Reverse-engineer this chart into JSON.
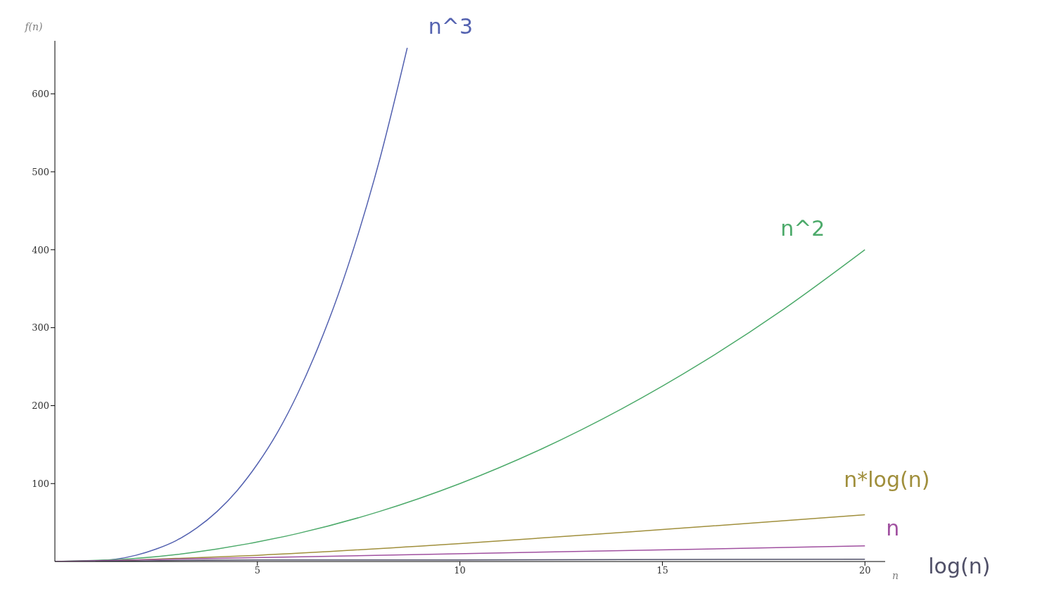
{
  "chart_data": {
    "type": "line",
    "xlabel": "n",
    "ylabel": "f(n)",
    "xlim": [
      0,
      20.5
    ],
    "ylim": [
      0,
      668
    ],
    "xticks": [
      5,
      10,
      15,
      20
    ],
    "yticks": [
      100,
      200,
      300,
      400,
      500,
      600
    ],
    "marker": "none",
    "line_style": "solid",
    "series": [
      {
        "name": "n^3",
        "color": "#5462b0",
        "x": [
          0,
          1,
          1.5,
          2,
          2.5,
          3,
          3.5,
          4,
          4.5,
          5,
          5.5,
          6,
          6.5,
          7,
          7.5,
          8,
          8.7
        ],
        "values": [
          0,
          1,
          3,
          8,
          16,
          27,
          43,
          64,
          91,
          125,
          166,
          216,
          275,
          343,
          422,
          512,
          659
        ]
      },
      {
        "name": "n^2",
        "color": "#4caa6a",
        "x": [
          0,
          2,
          4,
          6,
          8,
          10,
          12,
          14,
          16,
          18,
          20
        ],
        "values": [
          0,
          4,
          16,
          36,
          64,
          100,
          144,
          196,
          256,
          324,
          400
        ]
      },
      {
        "name": "n*log(n)",
        "color": "#a08f3c",
        "x": [
          1,
          5,
          10,
          15,
          20
        ],
        "values": [
          0,
          8,
          23,
          41,
          60
        ]
      },
      {
        "name": "n",
        "color": "#a050a0",
        "x": [
          0,
          20
        ],
        "values": [
          0,
          20
        ]
      },
      {
        "name": "log(n)",
        "color": "#505068",
        "x": [
          1,
          5,
          10,
          20
        ],
        "values": [
          0,
          2,
          2,
          3
        ]
      }
    ]
  }
}
